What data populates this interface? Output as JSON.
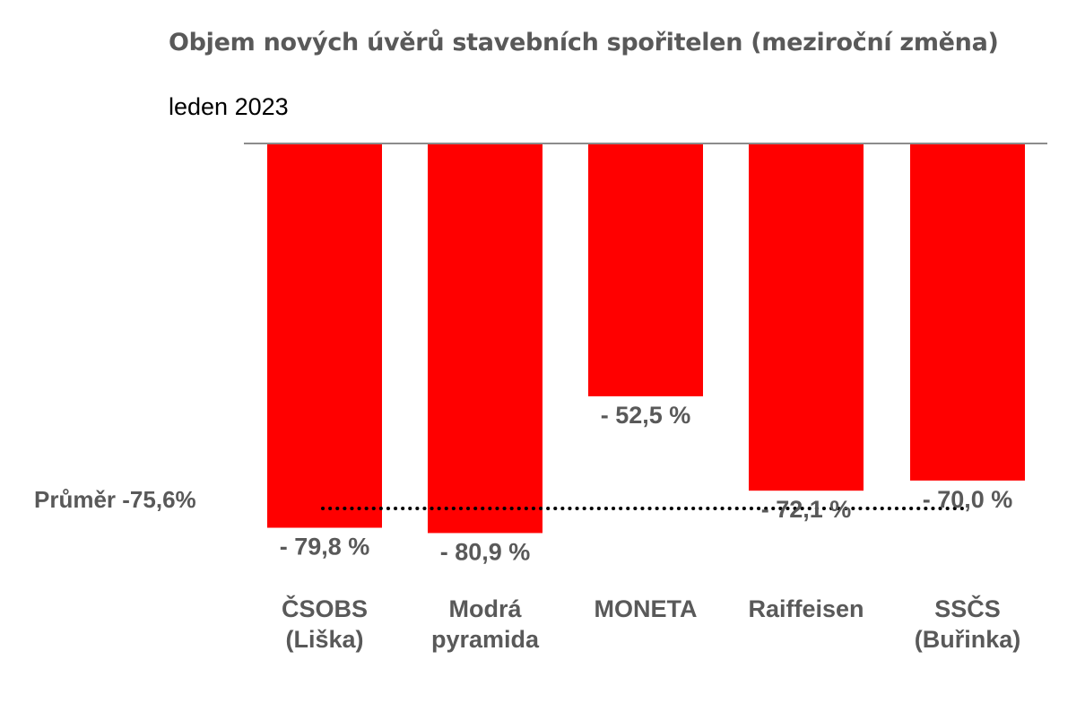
{
  "chart_data": {
    "type": "bar",
    "title": "Objem nových úvěrů stavebních spořitelen (meziroční změna)",
    "subtitle": "leden 2023",
    "categories": [
      [
        "ČSOBS",
        "(Liška)"
      ],
      [
        "Modrá",
        "pyramida"
      ],
      [
        "MONETA"
      ],
      [
        "Raiffeisen"
      ],
      [
        "SSČS",
        "(Buřinka)"
      ]
    ],
    "values": [
      -79.8,
      -80.9,
      -52.5,
      -72.1,
      -70.0
    ],
    "value_labels": [
      "- 79,8 %",
      "- 80,9 %",
      "- 52,5 %",
      "- 72,1 %",
      "- 70,0 %"
    ],
    "average": {
      "value": -75.6,
      "label": "Průměr -75,6%"
    },
    "ylim": [
      -100,
      0
    ],
    "bar_color": "#ff0000",
    "axis_color": "#8c8c8c",
    "grid": false
  }
}
